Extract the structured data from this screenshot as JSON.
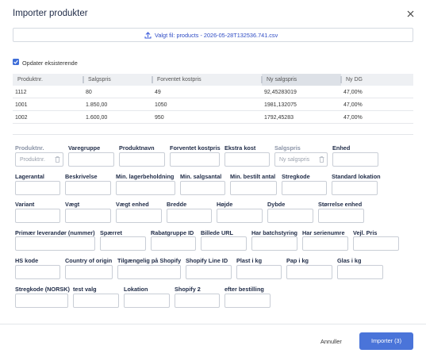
{
  "dialog": {
    "title": "Importer produkter",
    "file_button": "Valgt fil: products - 2026-05-28T132536.741.csv",
    "checkbox_label": "Opdater eksisterende",
    "table": {
      "columns": [
        "Produktnr.",
        "Salgspris",
        "Forventet kostpris",
        "Ny salgspris",
        "Ny DG"
      ],
      "rows": [
        [
          "1112",
          "80",
          "49",
          "92,45283019",
          "47,00%"
        ],
        [
          "1001",
          "1.850,00",
          "1050",
          "1981,132075",
          "47,00%"
        ],
        [
          "1002",
          "1.600,00",
          "950",
          "1792,45283",
          "47,00%"
        ]
      ]
    },
    "fields": [
      [
        {
          "label": "Produktnr.",
          "placeholder": "Produktnr."
        },
        {
          "label": "Varegruppe"
        },
        {
          "label": "Produktnavn"
        },
        {
          "label": "Forventet kostpris"
        },
        {
          "label": "Ekstra kost"
        },
        {
          "label": "Salgspris",
          "placeholder": "Ny salgspris"
        },
        {
          "label": "Enhed"
        }
      ],
      [
        {
          "label": "Lagerantal"
        },
        {
          "label": "Beskrivelse"
        },
        {
          "label": "Min. lagerbeholdning"
        },
        {
          "label": "Min. salgsantal"
        },
        {
          "label": "Min. bestilt antal"
        },
        {
          "label": "Stregkode"
        },
        {
          "label": "Standard lokation"
        }
      ],
      [
        {
          "label": "Variant"
        },
        {
          "label": "Vægt"
        },
        {
          "label": "Vægt enhed"
        },
        {
          "label": "Bredde"
        },
        {
          "label": "Højde"
        },
        {
          "label": "Dybde"
        },
        {
          "label": "Størrelse enhed"
        }
      ],
      [
        {
          "label": "Primær leverandør (nummer)"
        },
        {
          "label": "Spærret"
        },
        {
          "label": "Rabatgruppe ID"
        },
        {
          "label": "Billede URL"
        },
        {
          "label": "Har batchstyring"
        },
        {
          "label": "Har serienumre"
        },
        {
          "label": "Vejl. Pris"
        }
      ],
      [
        {
          "label": "HS kode"
        },
        {
          "label": "Country of origin"
        },
        {
          "label": "Tilgængelig på Shopify"
        },
        {
          "label": "Shopify Line ID"
        },
        {
          "label": "Plast i kg"
        },
        {
          "label": "Pap i kg"
        },
        {
          "label": "Glas i kg"
        }
      ],
      [
        {
          "label": "Stregkode (NORSK)"
        },
        {
          "label": "test valg"
        },
        {
          "label": "Lokation"
        },
        {
          "label": "Shopify 2"
        },
        {
          "label": "efter bestilling"
        }
      ]
    ],
    "footer": {
      "cancel": "Annuller",
      "submit": "Importer (3)"
    }
  }
}
